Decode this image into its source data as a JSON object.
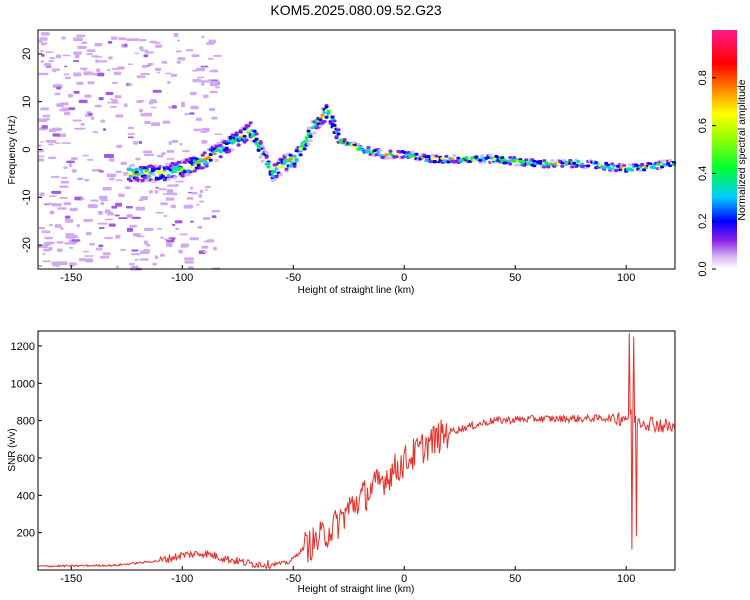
{
  "title": "KOM5.2025.080.09.52.G23",
  "chart_data": [
    {
      "type": "heatmap",
      "xlabel": "Height of straight line (km)",
      "ylabel": "Frequency (Hz)",
      "xlim": [
        -165,
        122
      ],
      "ylim": [
        -25,
        25
      ],
      "xticks": [
        -150,
        -100,
        -50,
        0,
        50,
        100
      ],
      "yticks": [
        -20,
        -10,
        0,
        10,
        20
      ],
      "colorbar": {
        "label": "Normalized spectral amplitude",
        "range": [
          0,
          1
        ],
        "ticks": [
          0.0,
          0.2,
          0.4,
          0.6,
          0.8
        ],
        "tick_labels": [
          "0.0",
          "0.2",
          "0.4",
          "0.6",
          "0.8"
        ]
      },
      "ridge": {
        "x": [
          -125,
          -110,
          -100,
          -90,
          -80,
          -70,
          -60,
          -55,
          -50,
          -45,
          -40,
          -35,
          -30,
          -20,
          -10,
          0,
          10,
          20,
          40,
          60,
          80,
          100,
          120
        ],
        "freq": [
          -5,
          -5,
          -4,
          -2,
          1,
          4,
          -5,
          -3,
          -2,
          2,
          6,
          8,
          2,
          0,
          -1,
          -1,
          -2,
          -2,
          -2,
          -3,
          -3,
          -4,
          -3
        ]
      },
      "noise_region": [
        -165,
        -110
      ]
    },
    {
      "type": "line",
      "xlabel": "Height of straight line (km)",
      "ylabel": "SNR (v/v)",
      "xlim": [
        -165,
        122
      ],
      "ylim": [
        0,
        1280
      ],
      "xticks": [
        -150,
        -100,
        -50,
        0,
        50,
        100
      ],
      "yticks": [
        200,
        400,
        600,
        800,
        1000,
        1200
      ],
      "color": "#e8302a",
      "trend": {
        "x": [
          -165,
          -130,
          -110,
          -100,
          -90,
          -80,
          -70,
          -60,
          -52,
          -45,
          -40,
          -30,
          -25,
          -20,
          -10,
          0,
          10,
          20,
          30,
          40,
          60,
          80,
          95,
          100,
          103,
          106,
          110,
          122
        ],
        "y": [
          20,
          25,
          50,
          80,
          90,
          60,
          35,
          30,
          40,
          120,
          150,
          250,
          330,
          380,
          480,
          580,
          670,
          740,
          770,
          800,
          810,
          810,
          815,
          820,
          820,
          800,
          790,
          760
        ]
      },
      "spikes": [
        {
          "x": 101.5,
          "y": 1270
        },
        {
          "x": 102.5,
          "y": 110
        },
        {
          "x": 103.5,
          "y": 1250
        },
        {
          "x": 104.5,
          "y": 180
        }
      ]
    }
  ]
}
